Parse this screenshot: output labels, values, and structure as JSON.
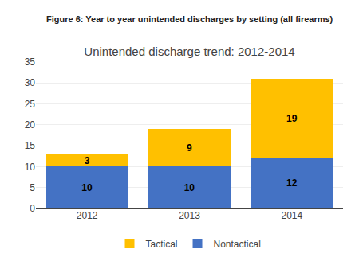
{
  "chart_data": {
    "type": "bar",
    "title": "Unintended discharge trend: 2012-2014",
    "subtitle": "Figure 6: Year to year unintended discharges by setting (all firearms)",
    "categories": [
      "2012",
      "2013",
      "2014"
    ],
    "series": [
      {
        "name": "Nontactical",
        "color": "#4472C4",
        "values": [
          10,
          10,
          12
        ]
      },
      {
        "name": "Tactical",
        "color": "#FFC000",
        "values": [
          3,
          9,
          19
        ]
      }
    ],
    "stacked": true,
    "data_labels": true,
    "ylim": [
      0,
      35
    ],
    "yticks": [
      0,
      5,
      10,
      15,
      20,
      25,
      30,
      35
    ],
    "grid": true,
    "legend": "bottom"
  }
}
